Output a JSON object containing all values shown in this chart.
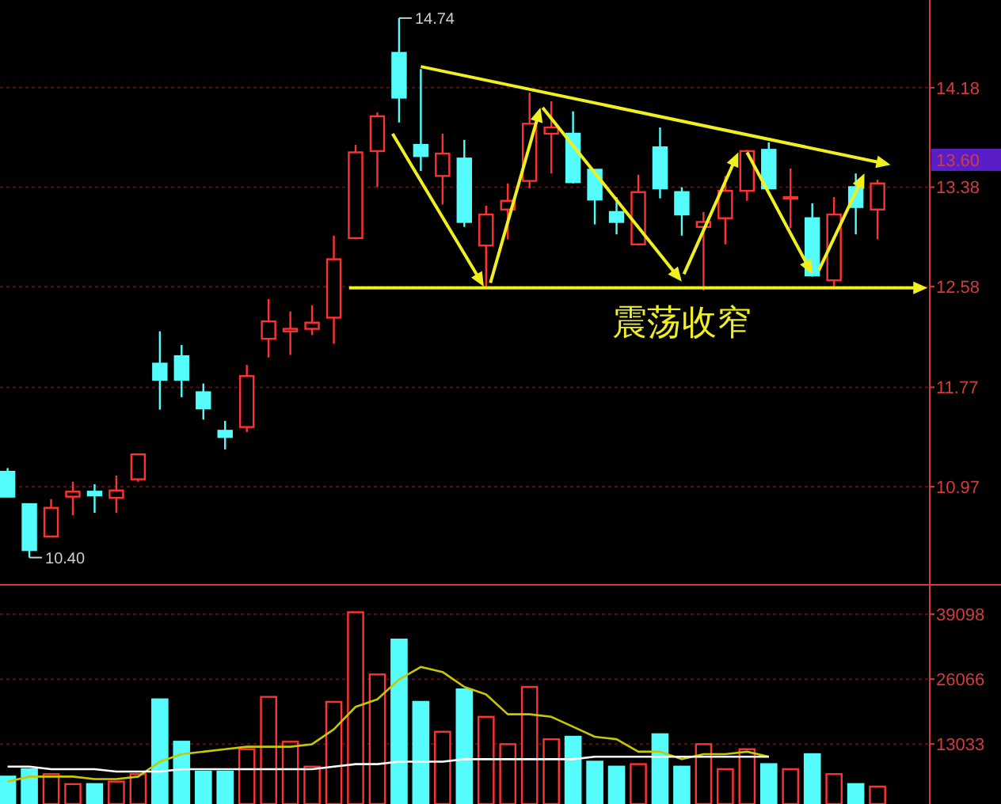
{
  "chart_data": [
    {
      "type": "candlestick",
      "categories": [
        null,
        null,
        null,
        null,
        null,
        null,
        null,
        null,
        null,
        null,
        null,
        null,
        null,
        null,
        null,
        null,
        null,
        null,
        null,
        null,
        null,
        null,
        null,
        null,
        null,
        null,
        null,
        null,
        null,
        null,
        null,
        null,
        null,
        null,
        null,
        null,
        null,
        null,
        null,
        null,
        null
      ],
      "ohlc": [
        [
          11.09,
          11.12,
          10.89,
          10.89
        ],
        [
          10.83,
          10.83,
          10.4,
          10.46
        ],
        [
          10.57,
          10.87,
          10.57,
          10.8
        ],
        [
          10.89,
          11.01,
          10.74,
          10.93
        ],
        [
          10.93,
          10.99,
          10.76,
          10.9
        ],
        [
          10.88,
          11.06,
          10.76,
          10.94
        ],
        [
          11.03,
          11.23,
          11.01,
          11.23
        ],
        [
          11.96,
          12.22,
          11.59,
          11.83
        ],
        [
          12.02,
          12.11,
          11.69,
          11.83
        ],
        [
          11.73,
          11.8,
          11.51,
          11.6
        ],
        [
          11.42,
          11.5,
          11.27,
          11.37
        ],
        [
          11.45,
          11.95,
          11.41,
          11.86
        ],
        [
          12.16,
          12.48,
          12.01,
          12.3
        ],
        [
          12.22,
          12.38,
          12.03,
          12.24
        ],
        [
          12.24,
          12.43,
          12.19,
          12.29
        ],
        [
          12.33,
          12.99,
          12.12,
          12.8
        ],
        [
          12.97,
          13.72,
          12.96,
          13.66
        ],
        [
          13.67,
          13.98,
          13.38,
          13.95
        ],
        [
          14.46,
          14.74,
          13.9,
          14.1
        ],
        [
          13.72,
          14.33,
          13.51,
          13.63
        ],
        [
          13.47,
          13.81,
          13.24,
          13.65
        ],
        [
          13.61,
          13.76,
          13.06,
          13.1
        ],
        [
          12.91,
          13.23,
          12.58,
          13.16
        ],
        [
          13.2,
          13.41,
          12.96,
          13.27
        ],
        [
          13.43,
          14.14,
          13.37,
          13.89
        ],
        [
          13.81,
          14.07,
          13.49,
          13.86
        ],
        [
          13.81,
          13.99,
          13.41,
          13.42
        ],
        [
          13.52,
          13.52,
          13.08,
          13.28
        ],
        [
          13.18,
          13.3,
          13.0,
          13.1
        ],
        [
          12.92,
          13.48,
          12.91,
          13.34
        ],
        [
          13.7,
          13.86,
          13.29,
          13.37
        ],
        [
          13.34,
          13.38,
          12.99,
          13.16
        ],
        [
          13.06,
          13.18,
          12.55,
          13.1
        ],
        [
          13.13,
          13.47,
          12.92,
          13.35
        ],
        [
          13.35,
          13.68,
          13.27,
          13.67
        ],
        [
          13.68,
          13.74,
          13.37,
          13.37
        ],
        [
          13.29,
          13.53,
          13.05,
          13.3
        ],
        [
          13.13,
          13.25,
          12.66,
          12.67
        ],
        [
          12.63,
          13.3,
          12.58,
          13.16
        ],
        [
          13.38,
          13.49,
          13.0,
          13.22
        ],
        [
          13.2,
          13.44,
          12.96,
          13.41
        ]
      ],
      "colors": [
        "#54fcfc",
        "#54fcfc",
        "#ff3232",
        "#ff3232",
        "#54fcfc",
        "#ff3232",
        "#ff3232",
        "#54fcfc",
        "#54fcfc",
        "#54fcfc",
        "#54fcfc",
        "#ff3232",
        "#ff3232",
        "#ff3232",
        "#ff3232",
        "#ff3232",
        "#ff3232",
        "#ff3232",
        "#54fcfc",
        "#54fcfc",
        "#ff3232",
        "#54fcfc",
        "#ff3232",
        "#ff3232",
        "#ff3232",
        "#ff3232",
        "#54fcfc",
        "#54fcfc",
        "#54fcfc",
        "#ff3232",
        "#54fcfc",
        "#54fcfc",
        "#ff3232",
        "#ff3232",
        "#ff3232",
        "#54fcfc",
        "#ff3232",
        "#54fcfc",
        "#ff3232",
        "#54fcfc",
        "#ff3232"
      ],
      "ylim": [
        10.2,
        14.86
      ],
      "yticks": [
        10.97,
        11.77,
        12.58,
        13.38,
        14.18
      ],
      "grid": "y",
      "tick_labels": "y",
      "ref_lines": [
        {
          "axis": "y",
          "value": 12.57,
          "color": "#f0f020"
        }
      ],
      "annotations": [
        "14.74",
        "10.40",
        "13.60",
        "震荡收窄"
      ]
    },
    {
      "type": "bar",
      "categories": [
        null,
        null,
        null,
        null,
        null,
        null,
        null,
        null,
        null,
        null,
        null,
        null,
        null,
        null,
        null,
        null,
        null,
        null,
        null,
        null,
        null,
        null,
        null,
        null,
        null,
        null,
        null,
        null,
        null,
        null,
        null,
        null,
        null,
        null,
        null,
        null,
        null,
        null,
        null,
        null,
        null
      ],
      "series": [
        {
          "type": "bar",
          "colors": [
            "#54fcfc",
            "#54fcfc",
            "#ff3232",
            "#ff3232",
            "#54fcfc",
            "#ff3232",
            "#ff3232",
            "#54fcfc",
            "#54fcfc",
            "#54fcfc",
            "#54fcfc",
            "#ff3232",
            "#ff3232",
            "#ff3232",
            "#ff3232",
            "#ff3232",
            "#ff3232",
            "#ff3232",
            "#54fcfc",
            "#54fcfc",
            "#ff3232",
            "#54fcfc",
            "#ff3232",
            "#ff3232",
            "#ff3232",
            "#ff3232",
            "#54fcfc",
            "#54fcfc",
            "#54fcfc",
            "#ff3232",
            "#54fcfc",
            "#54fcfc",
            "#ff3232",
            "#ff3232",
            "#ff3232",
            "#54fcfc",
            "#ff3232",
            "#54fcfc",
            "#ff3232",
            "#54fcfc",
            "#ff3232"
          ],
          "values": [
            6500,
            8000,
            7000,
            5000,
            5000,
            5500,
            7000,
            22000,
            13500,
            7500,
            7500,
            12000,
            22500,
            13500,
            8500,
            21500,
            39500,
            27000,
            34000,
            21500,
            15500,
            24000,
            18500,
            13000,
            24500,
            14000,
            14500,
            9500,
            8500,
            9000,
            15000,
            8500,
            13000,
            8000,
            12000,
            9000,
            8000,
            11000,
            7000,
            5000,
            4500
          ]
        },
        {
          "type": "line",
          "color": "#c8c800",
          "values": [
            5500,
            6500,
            6500,
            6500,
            6000,
            6000,
            6500,
            9500,
            11000,
            11500,
            12000,
            12500,
            12500,
            12500,
            13000,
            16000,
            20500,
            22000,
            26000,
            28500,
            27500,
            24500,
            23000,
            19000,
            19000,
            18500,
            16500,
            14500,
            14000,
            11500,
            11500,
            10000,
            11000,
            11000,
            11500,
            10500,
            null,
            null,
            null,
            null,
            null
          ]
        },
        {
          "type": "line",
          "color": "#ffffff",
          "values": [
            8500,
            8500,
            8000,
            8000,
            8000,
            7500,
            7500,
            7500,
            8000,
            8000,
            8000,
            8000,
            8000,
            8000,
            8000,
            8500,
            9000,
            9000,
            9500,
            9500,
            9500,
            10000,
            10000,
            10000,
            10000,
            10000,
            10000,
            10500,
            10500,
            10500,
            10500,
            10500,
            10500,
            10500,
            10500,
            10500,
            null,
            null,
            null,
            null,
            null
          ]
        }
      ],
      "ylim": [
        1000,
        44200
      ],
      "yticks": [
        13033,
        26066,
        39098
      ],
      "grid": "y",
      "tick_labels": "y"
    }
  ]
}
